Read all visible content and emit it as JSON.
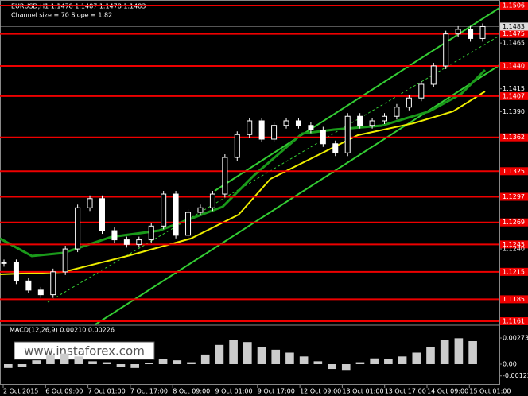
{
  "header": {
    "symbol_line": "EURUSD,H1  1.1478 1.1487 1.1478 1.1483",
    "channel_line": "Channel size = 70 Slope = 1.82"
  },
  "price_axis": {
    "levels": [
      "1.1506",
      "1.1475",
      "1.1440",
      "1.1407",
      "1.1362",
      "1.1325",
      "1.1297",
      "1.1269",
      "1.1245",
      "1.1215",
      "1.1185",
      "1.1161"
    ],
    "ticks": [
      "1.1465",
      "1.1415",
      "1.1390",
      "1.1240"
    ],
    "current": "1.1483"
  },
  "price": {
    "closes": [
      1.1225,
      1.1205,
      1.1195,
      1.119,
      1.1215,
      1.124,
      1.1285,
      1.1295,
      1.126,
      1.125,
      1.1245,
      1.125,
      1.1265,
      1.13,
      1.1255,
      1.128,
      1.1285,
      1.13,
      1.134,
      1.1365,
      1.138,
      1.136,
      1.1375,
      1.138,
      1.1375,
      1.137,
      1.1355,
      1.1345,
      1.1385,
      1.1375,
      1.138,
      1.1385,
      1.1395,
      1.1405,
      1.142,
      1.144,
      1.1475,
      1.148,
      1.147,
      1.1483
    ]
  },
  "macd": {
    "label": "MACD(12,26,9) 0.00210 0.00226",
    "ticks": [
      "0.00273",
      "0.00",
      "-0.00122"
    ],
    "values": [
      -0.0004,
      -0.0003,
      0.0004,
      0.0009,
      0.0011,
      0.0008,
      0.0003,
      0.0002,
      -0.0003,
      -0.0004,
      0.0001,
      0.0005,
      0.0004,
      0.0002,
      0.001,
      0.002,
      0.0025,
      0.0023,
      0.0018,
      0.0015,
      0.0012,
      0.0008,
      0.0003,
      -0.0005,
      -0.0006,
      0.0002,
      0.0006,
      0.0005,
      0.0008,
      0.0012,
      0.0018,
      0.0025,
      0.0027,
      0.0024
    ]
  },
  "time_axis": [
    "2 Oct 2015",
    "6 Oct 09:00",
    "7 Oct 01:00",
    "7 Oct 17:00",
    "8 Oct 09:00",
    "9 Oct 01:00",
    "9 Oct 17:00",
    "12 Oct 09:00",
    "13 Oct 01:00",
    "13 Oct 17:00",
    "14 Oct 09:00",
    "15 Oct 01:00"
  ],
  "watermark": "www.instaforex.com"
}
